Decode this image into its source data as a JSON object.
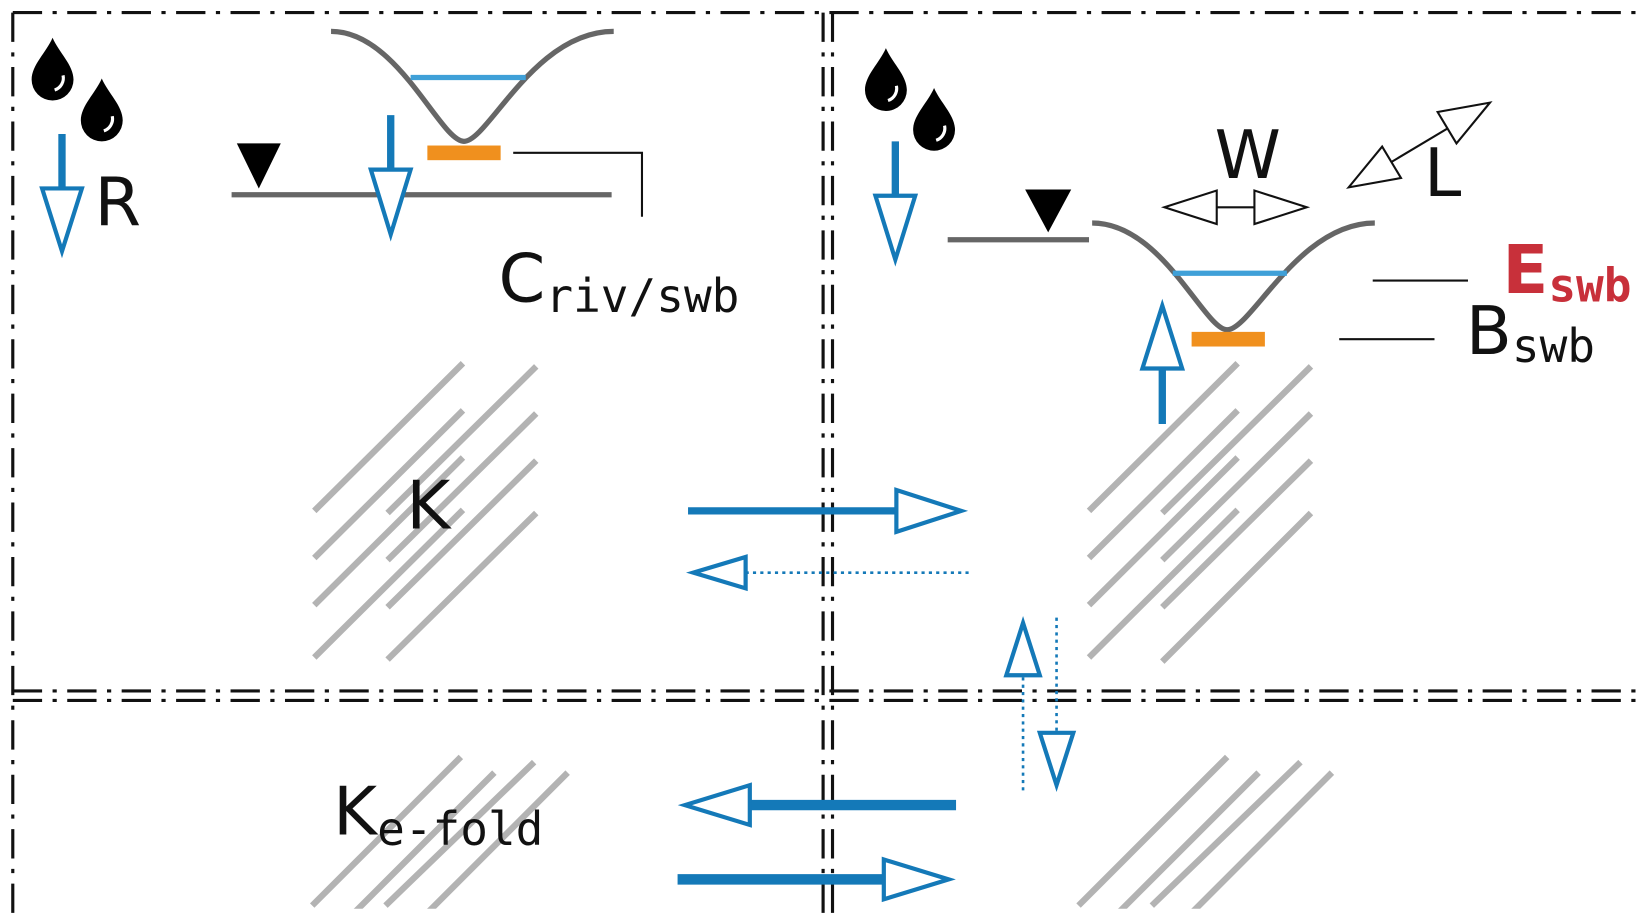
{
  "labels": {
    "recharge": "R",
    "conductance": {
      "symbol": "C",
      "subscript": "riv/swb"
    },
    "hydraulic_conductivity": "K",
    "width": "W",
    "length": "L",
    "elevation": {
      "symbol": "E",
      "subscript": "swb"
    },
    "bottom": {
      "symbol": "B",
      "subscript": "swb"
    },
    "efold": {
      "symbol": "K",
      "subscript": "e-fold"
    }
  }
}
